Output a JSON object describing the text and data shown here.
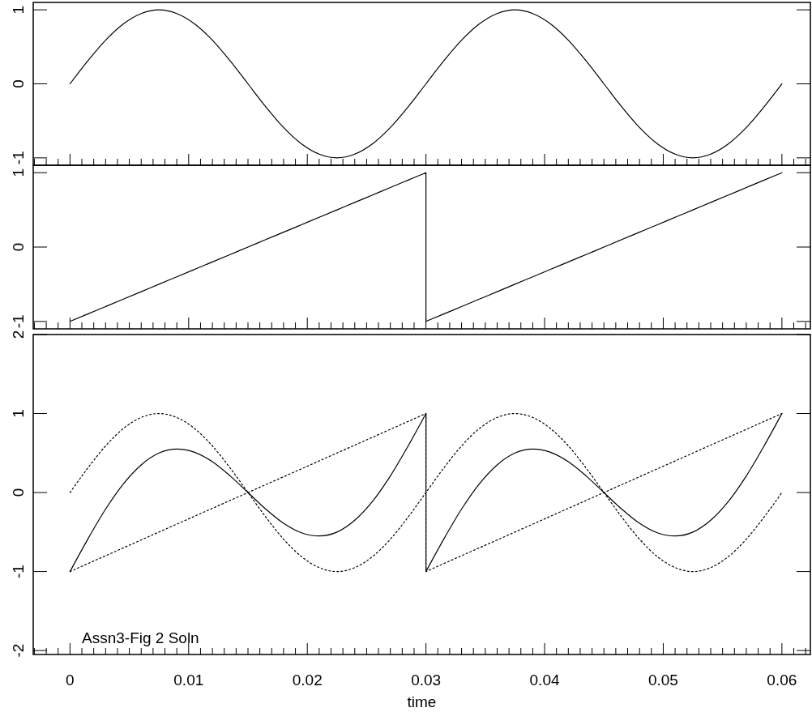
{
  "chart_data": [
    {
      "type": "line",
      "tick_labels": "y",
      "xlim": [
        -0.0031,
        0.0624
      ],
      "ylim": [
        -1.1,
        1.1
      ],
      "yticks": [
        -1,
        0,
        1
      ],
      "xticks": [
        {
          "value": -0.003,
          "label": null
        },
        {
          "value": -0.002,
          "label": null
        },
        {
          "value": -0.001,
          "label": null
        },
        0,
        {
          "value": 0.001,
          "label": null
        },
        {
          "value": 0.002,
          "label": null
        },
        {
          "value": 0.003,
          "label": null
        },
        {
          "value": 0.004,
          "label": null
        },
        {
          "value": 0.005,
          "label": null
        },
        {
          "value": 0.006,
          "label": null
        },
        {
          "value": 0.007,
          "label": null
        },
        {
          "value": 0.008,
          "label": null
        },
        {
          "value": 0.009,
          "label": null
        },
        0.01,
        {
          "value": 0.011,
          "label": null
        },
        {
          "value": 0.012,
          "label": null
        },
        {
          "value": 0.013,
          "label": null
        },
        {
          "value": 0.014,
          "label": null
        },
        {
          "value": 0.015,
          "label": null
        },
        {
          "value": 0.016,
          "label": null
        },
        {
          "value": 0.017,
          "label": null
        },
        {
          "value": 0.018,
          "label": null
        },
        {
          "value": 0.019,
          "label": null
        },
        0.02,
        {
          "value": 0.021,
          "label": null
        },
        {
          "value": 0.022,
          "label": null
        },
        {
          "value": 0.023,
          "label": null
        },
        {
          "value": 0.024,
          "label": null
        },
        {
          "value": 0.025,
          "label": null
        },
        {
          "value": 0.026,
          "label": null
        },
        {
          "value": 0.027,
          "label": null
        },
        {
          "value": 0.028,
          "label": null
        },
        {
          "value": 0.029,
          "label": null
        },
        0.03,
        {
          "value": 0.031,
          "label": null
        },
        {
          "value": 0.032,
          "label": null
        },
        {
          "value": 0.033,
          "label": null
        },
        {
          "value": 0.034,
          "label": null
        },
        {
          "value": 0.035,
          "label": null
        },
        {
          "value": 0.036,
          "label": null
        },
        {
          "value": 0.037,
          "label": null
        },
        {
          "value": 0.038,
          "label": null
        },
        {
          "value": 0.039,
          "label": null
        },
        0.04,
        {
          "value": 0.041,
          "label": null
        },
        {
          "value": 0.042,
          "label": null
        },
        {
          "value": 0.043,
          "label": null
        },
        {
          "value": 0.044,
          "label": null
        },
        {
          "value": 0.045,
          "label": null
        },
        {
          "value": 0.046,
          "label": null
        },
        {
          "value": 0.047,
          "label": null
        },
        {
          "value": 0.048,
          "label": null
        },
        {
          "value": 0.049,
          "label": null
        },
        0.05,
        {
          "value": 0.051,
          "label": null
        },
        {
          "value": 0.052,
          "label": null
        },
        {
          "value": 0.053,
          "label": null
        },
        {
          "value": 0.054,
          "label": null
        },
        {
          "value": 0.055,
          "label": null
        },
        {
          "value": 0.056,
          "label": null
        },
        {
          "value": 0.057,
          "label": null
        },
        {
          "value": 0.058,
          "label": null
        },
        {
          "value": 0.059,
          "label": null
        },
        0.06,
        {
          "value": 0.061,
          "label": null
        },
        {
          "value": 0.062,
          "label": null
        }
      ],
      "series": [
        {
          "color": "#000000",
          "line_style": "solid",
          "x": [
            0,
            0.0015,
            0.003,
            0.0045,
            0.006,
            0.0075,
            0.009,
            0.0105,
            0.012,
            0.0135,
            0.015,
            0.0165,
            0.018,
            0.0195,
            0.021,
            0.0225,
            0.024,
            0.0255,
            0.027,
            0.0285,
            0.03,
            0.0315,
            0.033,
            0.0345,
            0.036,
            0.0375,
            0.039,
            0.0405,
            0.042,
            0.0435,
            0.045,
            0.0465,
            0.048,
            0.0495,
            0.051,
            0.0525,
            0.054,
            0.0555,
            0.057,
            0.0585,
            0.06
          ],
          "values": [
            0,
            0.31,
            0.59,
            0.81,
            0.95,
            1,
            0.95,
            0.81,
            0.59,
            0.31,
            0,
            -0.31,
            -0.59,
            -0.81,
            -0.95,
            -1,
            -0.95,
            -0.81,
            -0.59,
            -0.31,
            0,
            0.31,
            0.59,
            0.81,
            0.95,
            1,
            0.95,
            0.81,
            0.59,
            0.31,
            0,
            -0.31,
            -0.59,
            -0.81,
            -0.95,
            -1,
            -0.95,
            -0.81,
            -0.59,
            -0.31,
            0
          ]
        }
      ]
    },
    {
      "type": "line",
      "tick_labels": "y",
      "xlim": [
        -0.0031,
        0.0624
      ],
      "ylim": [
        -1.1,
        1.1
      ],
      "yticks": [
        -1,
        0,
        1
      ],
      "xticks": [
        {
          "value": -0.003,
          "label": null
        },
        {
          "value": -0.002,
          "label": null
        },
        {
          "value": -0.001,
          "label": null
        },
        0,
        {
          "value": 0.001,
          "label": null
        },
        {
          "value": 0.002,
          "label": null
        },
        {
          "value": 0.003,
          "label": null
        },
        {
          "value": 0.004,
          "label": null
        },
        {
          "value": 0.005,
          "label": null
        },
        {
          "value": 0.006,
          "label": null
        },
        {
          "value": 0.007,
          "label": null
        },
        {
          "value": 0.008,
          "label": null
        },
        {
          "value": 0.009,
          "label": null
        },
        0.01,
        {
          "value": 0.011,
          "label": null
        },
        {
          "value": 0.012,
          "label": null
        },
        {
          "value": 0.013,
          "label": null
        },
        {
          "value": 0.014,
          "label": null
        },
        {
          "value": 0.015,
          "label": null
        },
        {
          "value": 0.016,
          "label": null
        },
        {
          "value": 0.017,
          "label": null
        },
        {
          "value": 0.018,
          "label": null
        },
        {
          "value": 0.019,
          "label": null
        },
        0.02,
        {
          "value": 0.021,
          "label": null
        },
        {
          "value": 0.022,
          "label": null
        },
        {
          "value": 0.023,
          "label": null
        },
        {
          "value": 0.024,
          "label": null
        },
        {
          "value": 0.025,
          "label": null
        },
        {
          "value": 0.026,
          "label": null
        },
        {
          "value": 0.027,
          "label": null
        },
        {
          "value": 0.028,
          "label": null
        },
        {
          "value": 0.029,
          "label": null
        },
        0.03,
        {
          "value": 0.031,
          "label": null
        },
        {
          "value": 0.032,
          "label": null
        },
        {
          "value": 0.033,
          "label": null
        },
        {
          "value": 0.034,
          "label": null
        },
        {
          "value": 0.035,
          "label": null
        },
        {
          "value": 0.036,
          "label": null
        },
        {
          "value": 0.037,
          "label": null
        },
        {
          "value": 0.038,
          "label": null
        },
        {
          "value": 0.039,
          "label": null
        },
        0.04,
        {
          "value": 0.041,
          "label": null
        },
        {
          "value": 0.042,
          "label": null
        },
        {
          "value": 0.043,
          "label": null
        },
        {
          "value": 0.044,
          "label": null
        },
        {
          "value": 0.045,
          "label": null
        },
        {
          "value": 0.046,
          "label": null
        },
        {
          "value": 0.047,
          "label": null
        },
        {
          "value": 0.048,
          "label": null
        },
        {
          "value": 0.049,
          "label": null
        },
        0.05,
        {
          "value": 0.051,
          "label": null
        },
        {
          "value": 0.052,
          "label": null
        },
        {
          "value": 0.053,
          "label": null
        },
        {
          "value": 0.054,
          "label": null
        },
        {
          "value": 0.055,
          "label": null
        },
        {
          "value": 0.056,
          "label": null
        },
        {
          "value": 0.057,
          "label": null
        },
        {
          "value": 0.058,
          "label": null
        },
        {
          "value": 0.059,
          "label": null
        },
        0.06,
        {
          "value": 0.061,
          "label": null
        },
        {
          "value": 0.062,
          "label": null
        }
      ],
      "series": [
        {
          "color": "#000000",
          "line_style": "solid",
          "x": [
            0,
            0.0015,
            0.003,
            0.0045,
            0.006,
            0.0075,
            0.009,
            0.0105,
            0.012,
            0.0135,
            0.015,
            0.0165,
            0.018,
            0.0195,
            0.021,
            0.0225,
            0.024,
            0.0255,
            0.027,
            0.0285,
            0.03,
            0.03,
            0.0315,
            0.033,
            0.0345,
            0.036,
            0.0375,
            0.039,
            0.0405,
            0.042,
            0.0435,
            0.045,
            0.0465,
            0.048,
            0.0495,
            0.051,
            0.0525,
            0.054,
            0.0555,
            0.057,
            0.0585,
            0.06
          ],
          "values": [
            -1,
            -0.9,
            -0.8,
            -0.7,
            -0.6,
            -0.5,
            -0.4,
            -0.3,
            -0.2,
            -0.1,
            0,
            0.1,
            0.2,
            0.3,
            0.4,
            0.5,
            0.6,
            0.7,
            0.8,
            0.9,
            1,
            -1,
            -0.9,
            -0.8,
            -0.7,
            -0.6,
            -0.5,
            -0.4,
            -0.3,
            -0.2,
            -0.1,
            0,
            0.1,
            0.2,
            0.3,
            0.4,
            0.5,
            0.6,
            0.7,
            0.8,
            0.9,
            1
          ]
        }
      ]
    },
    {
      "type": "line",
      "xlabel": "time",
      "annotations": [
        "Assn3-Fig 2 Soln"
      ],
      "xlim": [
        -0.0031,
        0.0624
      ],
      "ylim": [
        -2.05,
        2.0
      ],
      "yticks": [
        -2,
        -1,
        0,
        1,
        2
      ],
      "xticks": [
        {
          "value": -0.003,
          "label": null
        },
        {
          "value": -0.002,
          "label": null
        },
        {
          "value": -0.001,
          "label": null
        },
        0,
        {
          "value": 0.001,
          "label": null
        },
        {
          "value": 0.002,
          "label": null
        },
        {
          "value": 0.003,
          "label": null
        },
        {
          "value": 0.004,
          "label": null
        },
        {
          "value": 0.005,
          "label": null
        },
        {
          "value": 0.006,
          "label": null
        },
        {
          "value": 0.007,
          "label": null
        },
        {
          "value": 0.008,
          "label": null
        },
        {
          "value": 0.009,
          "label": null
        },
        0.01,
        {
          "value": 0.011,
          "label": null
        },
        {
          "value": 0.012,
          "label": null
        },
        {
          "value": 0.013,
          "label": null
        },
        {
          "value": 0.014,
          "label": null
        },
        {
          "value": 0.015,
          "label": null
        },
        {
          "value": 0.016,
          "label": null
        },
        {
          "value": 0.017,
          "label": null
        },
        {
          "value": 0.018,
          "label": null
        },
        {
          "value": 0.019,
          "label": null
        },
        0.02,
        {
          "value": 0.021,
          "label": null
        },
        {
          "value": 0.022,
          "label": null
        },
        {
          "value": 0.023,
          "label": null
        },
        {
          "value": 0.024,
          "label": null
        },
        {
          "value": 0.025,
          "label": null
        },
        {
          "value": 0.026,
          "label": null
        },
        {
          "value": 0.027,
          "label": null
        },
        {
          "value": 0.028,
          "label": null
        },
        {
          "value": 0.029,
          "label": null
        },
        0.03,
        {
          "value": 0.031,
          "label": null
        },
        {
          "value": 0.032,
          "label": null
        },
        {
          "value": 0.033,
          "label": null
        },
        {
          "value": 0.034,
          "label": null
        },
        {
          "value": 0.035,
          "label": null
        },
        {
          "value": 0.036,
          "label": null
        },
        {
          "value": 0.037,
          "label": null
        },
        {
          "value": 0.038,
          "label": null
        },
        {
          "value": 0.039,
          "label": null
        },
        0.04,
        {
          "value": 0.041,
          "label": null
        },
        {
          "value": 0.042,
          "label": null
        },
        {
          "value": 0.043,
          "label": null
        },
        {
          "value": 0.044,
          "label": null
        },
        {
          "value": 0.045,
          "label": null
        },
        {
          "value": 0.046,
          "label": null
        },
        {
          "value": 0.047,
          "label": null
        },
        {
          "value": 0.048,
          "label": null
        },
        {
          "value": 0.049,
          "label": null
        },
        0.05,
        {
          "value": 0.051,
          "label": null
        },
        {
          "value": 0.052,
          "label": null
        },
        {
          "value": 0.053,
          "label": null
        },
        {
          "value": 0.054,
          "label": null
        },
        {
          "value": 0.055,
          "label": null
        },
        {
          "value": 0.056,
          "label": null
        },
        {
          "value": 0.057,
          "label": null
        },
        {
          "value": 0.058,
          "label": null
        },
        {
          "value": 0.059,
          "label": null
        },
        0.06,
        {
          "value": 0.061,
          "label": null
        },
        {
          "value": 0.062,
          "label": null
        }
      ],
      "series": [
        {
          "color": "#000000",
          "line_style": "dotted",
          "x": [
            0,
            0.0015,
            0.003,
            0.0045,
            0.006,
            0.0075,
            0.009,
            0.0105,
            0.012,
            0.0135,
            0.015,
            0.0165,
            0.018,
            0.0195,
            0.021,
            0.0225,
            0.024,
            0.0255,
            0.027,
            0.0285,
            0.03,
            0.0315,
            0.033,
            0.0345,
            0.036,
            0.0375,
            0.039,
            0.0405,
            0.042,
            0.0435,
            0.045,
            0.0465,
            0.048,
            0.0495,
            0.051,
            0.0525,
            0.054,
            0.0555,
            0.057,
            0.0585,
            0.06
          ],
          "values": [
            0,
            0.31,
            0.59,
            0.81,
            0.95,
            1,
            0.95,
            0.81,
            0.59,
            0.31,
            0,
            -0.31,
            -0.59,
            -0.81,
            -0.95,
            -1,
            -0.95,
            -0.81,
            -0.59,
            -0.31,
            0,
            0.31,
            0.59,
            0.81,
            0.95,
            1,
            0.95,
            0.81,
            0.59,
            0.31,
            0,
            -0.31,
            -0.59,
            -0.81,
            -0.95,
            -1,
            -0.95,
            -0.81,
            -0.59,
            -0.31,
            0
          ]
        },
        {
          "color": "#000000",
          "line_style": "dotted",
          "x": [
            0,
            0.0015,
            0.003,
            0.0045,
            0.006,
            0.0075,
            0.009,
            0.0105,
            0.012,
            0.0135,
            0.015,
            0.0165,
            0.018,
            0.0195,
            0.021,
            0.0225,
            0.024,
            0.0255,
            0.027,
            0.0285,
            0.03,
            0.03,
            0.0315,
            0.033,
            0.0345,
            0.036,
            0.0375,
            0.039,
            0.0405,
            0.042,
            0.0435,
            0.045,
            0.0465,
            0.048,
            0.0495,
            0.051,
            0.0525,
            0.054,
            0.0555,
            0.057,
            0.0585,
            0.06
          ],
          "values": [
            -1,
            -0.9,
            -0.8,
            -0.7,
            -0.6,
            -0.5,
            -0.4,
            -0.3,
            -0.2,
            -0.1,
            0,
            0.1,
            0.2,
            0.3,
            0.4,
            0.5,
            0.6,
            0.7,
            0.8,
            0.9,
            1,
            -1,
            -0.9,
            -0.8,
            -0.7,
            -0.6,
            -0.5,
            -0.4,
            -0.3,
            -0.2,
            -0.1,
            0,
            0.1,
            0.2,
            0.3,
            0.4,
            0.5,
            0.6,
            0.7,
            0.8,
            0.9,
            1
          ]
        },
        {
          "color": "#000000",
          "line_style": "solid",
          "x": [
            0,
            0.0015,
            0.003,
            0.0045,
            0.006,
            0.0075,
            0.009,
            0.0105,
            0.012,
            0.0135,
            0.015,
            0.0165,
            0.018,
            0.0195,
            0.021,
            0.0225,
            0.024,
            0.0255,
            0.027,
            0.0285,
            0.03,
            0.03,
            0.0315,
            0.033,
            0.0345,
            0.036,
            0.0375,
            0.039,
            0.0405,
            0.042,
            0.0435,
            0.045,
            0.0465,
            0.048,
            0.0495,
            0.051,
            0.0525,
            0.054,
            0.0555,
            0.057,
            0.0585,
            0.06
          ],
          "values": [
            -1,
            -0.59,
            -0.21,
            0.11,
            0.35,
            0.5,
            0.55,
            0.51,
            0.39,
            0.21,
            0,
            -0.21,
            -0.39,
            -0.51,
            -0.55,
            -0.5,
            -0.35,
            -0.11,
            0.21,
            0.59,
            1,
            -1,
            -0.59,
            -0.21,
            0.11,
            0.35,
            0.5,
            0.55,
            0.51,
            0.39,
            0.21,
            0,
            -0.21,
            -0.39,
            -0.51,
            -0.55,
            -0.5,
            -0.35,
            -0.11,
            0.21,
            0.59,
            1
          ]
        }
      ]
    }
  ]
}
